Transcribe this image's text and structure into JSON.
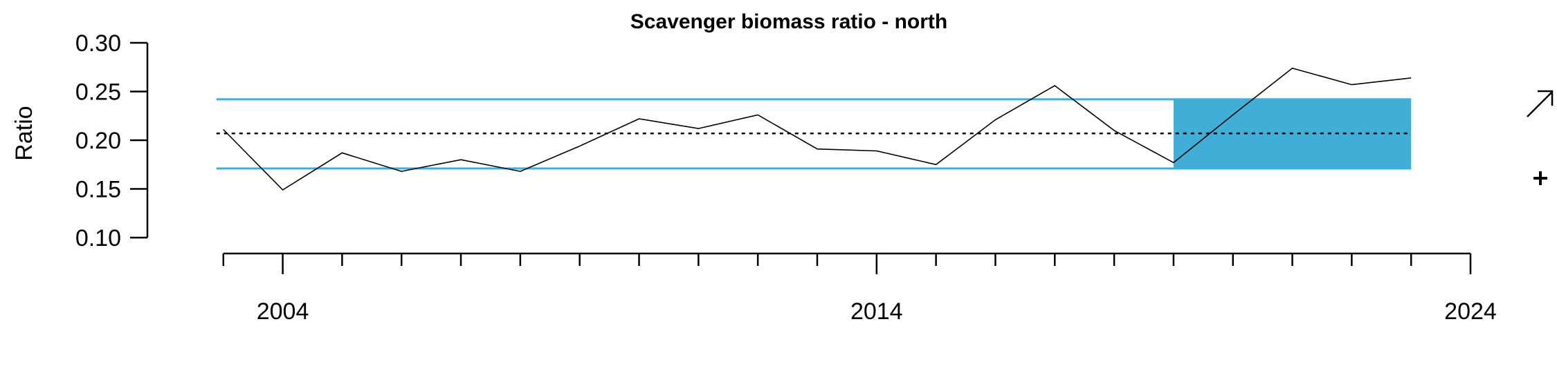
{
  "chart_data": {
    "type": "line",
    "title": "Scavenger biomass ratio - north",
    "xlabel": "",
    "ylabel": "Ratio",
    "xlim": [
      2002.7,
      2024
    ],
    "ylim": [
      0.1,
      0.3
    ],
    "y_ticks": [
      0.1,
      0.15,
      0.2,
      0.25,
      0.3
    ],
    "y_tick_labels": [
      "0.10",
      "0.15",
      "0.20",
      "0.25",
      "0.30"
    ],
    "x_major_ticks": [
      2004,
      2014,
      2024
    ],
    "x_minor_ticks": [
      2003,
      2005,
      2006,
      2007,
      2008,
      2009,
      2010,
      2011,
      2012,
      2013,
      2015,
      2016,
      2017,
      2018,
      2019,
      2020,
      2021,
      2022,
      2023
    ],
    "x_tick_labels": [
      "2004",
      "2014",
      "2024"
    ],
    "grid": false,
    "series": [
      {
        "x": [
          2003,
          2004,
          2005,
          2006,
          2007,
          2008,
          2009,
          2010,
          2011,
          2012,
          2013,
          2014,
          2015,
          2016,
          2017,
          2018,
          2019,
          2020,
          2021,
          2022,
          2023
        ],
        "values": [
          0.211,
          0.149,
          0.187,
          0.168,
          0.18,
          0.168,
          0.194,
          0.222,
          0.212,
          0.226,
          0.191,
          0.189,
          0.175,
          0.221,
          0.256,
          0.21,
          0.177,
          0.226,
          0.274,
          0.257,
          0.264
        ],
        "color": "#000000"
      }
    ],
    "mean_line": 0.207,
    "upper_sd_line": 0.242,
    "lower_sd_line": 0.171,
    "shaded_period": [
      2019,
      2023
    ],
    "band_color": "#41aed8",
    "trend_indicator": "increasing-arrow",
    "mean_indicator": "plus"
  }
}
